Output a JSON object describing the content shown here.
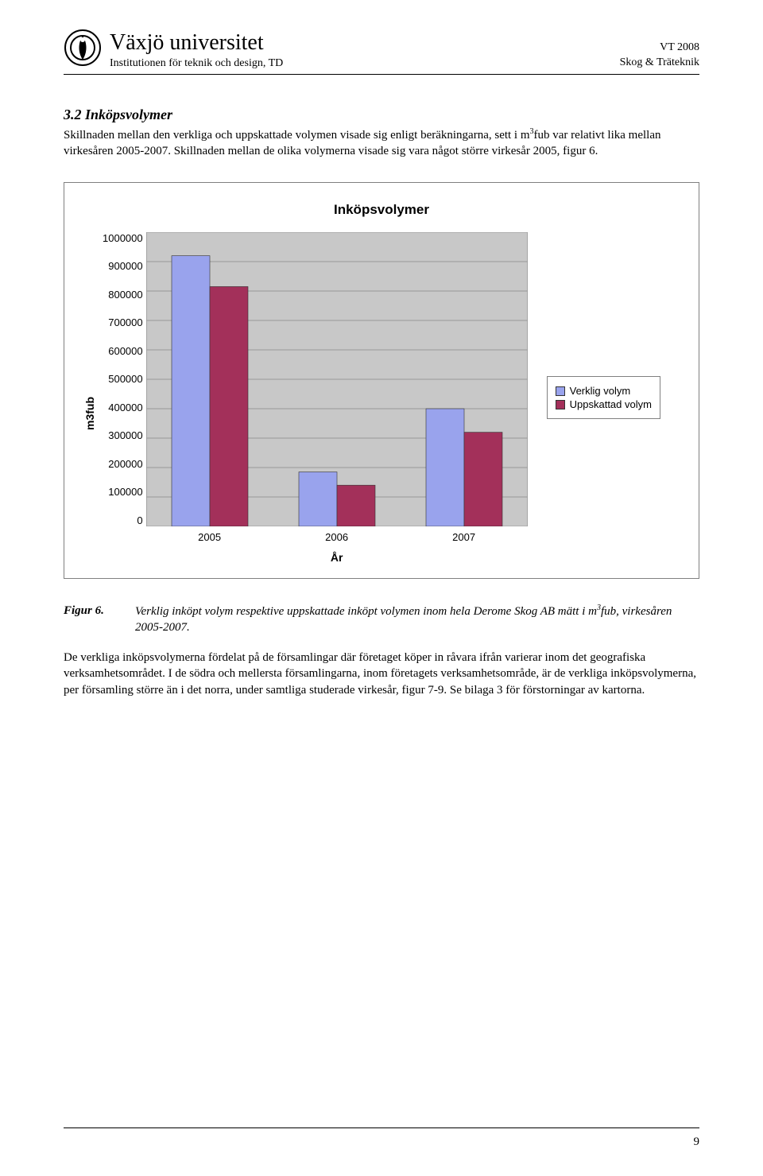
{
  "header": {
    "university": "Växjö universitet",
    "institution": "Institutionen för teknik och design, TD",
    "term": "VT 2008",
    "course": "Skog & Träteknik"
  },
  "section": {
    "number_title": "3.2 Inköpsvolymer",
    "paragraph1_a": "Skillnaden mellan den verkliga och uppskattade volymen visade sig enligt beräkningarna, sett i m",
    "paragraph1_sup": "3",
    "paragraph1_b": "fub var relativt lika mellan virkesåren 2005-2007. Skillnaden mellan de olika volymerna visade sig vara något större virkesår 2005, figur 6."
  },
  "chart": {
    "title": "Inköpsvolymer",
    "type": "bar",
    "y_axis_label": "m3fub",
    "x_axis_label": "År",
    "categories": [
      "2005",
      "2006",
      "2007"
    ],
    "series": [
      {
        "name": "Verklig volym",
        "color": "#99a3ed",
        "values": [
          920000,
          185000,
          400000
        ]
      },
      {
        "name": "Uppskattad volym",
        "color": "#a3305a",
        "values": [
          815000,
          140000,
          320000
        ]
      }
    ],
    "y_ticks": [
      "1000000",
      "900000",
      "800000",
      "700000",
      "600000",
      "500000",
      "400000",
      "300000",
      "200000",
      "100000",
      "0"
    ],
    "y_max": 1000000,
    "plot_bg": "#c8c8c8",
    "grid_color": "#999999",
    "border_color": "#808080",
    "bar_border": "#333333"
  },
  "caption": {
    "label": "Figur 6.",
    "text_a": "Verklig inköpt volym respektive uppskattade inköpt volymen inom hela Derome Skog AB mätt i m",
    "text_sup": "3",
    "text_b": "fub, virkesåren 2005-2007."
  },
  "paragraph2": "De verkliga inköpsvolymerna fördelat på de församlingar där företaget köper in råvara ifrån varierar inom det geografiska verksamhetsområdet. I de södra och mellersta församlingarna, inom företagets verksamhetsområde, är de verkliga inköpsvolymerna, per församling större än i det norra, under samtliga studerade virkesår, figur 7-9. Se bilaga 3 för förstorningar av kartorna.",
  "page_number": "9"
}
